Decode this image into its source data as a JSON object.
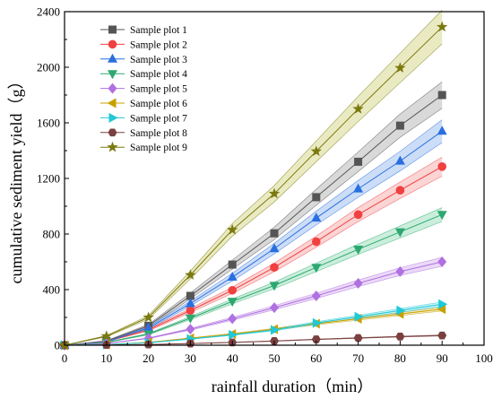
{
  "chart_data": {
    "type": "line",
    "xlabel": "rainfall duration（min）",
    "ylabel": "cumulative sediment yield（g）",
    "xlim": [
      0,
      100
    ],
    "ylim": [
      0,
      2400
    ],
    "xticks": [
      0,
      10,
      20,
      30,
      40,
      50,
      60,
      70,
      80,
      90,
      100
    ],
    "yticks": [
      0,
      400,
      800,
      1200,
      1600,
      2000,
      2400
    ],
    "grid": false,
    "legend_position": "top-left",
    "x": [
      0,
      10,
      20,
      30,
      40,
      50,
      60,
      70,
      80,
      90
    ],
    "series": [
      {
        "name": "Sample plot 1",
        "marker": "square",
        "color": "#555555",
        "band": "#bfbfbf",
        "values": [
          0,
          30,
          140,
          355,
          580,
          805,
          1065,
          1320,
          1580,
          1800
        ]
      },
      {
        "name": "Sample plot 2",
        "marker": "circle",
        "color": "#f04040",
        "band": "#f8b8b8",
        "values": [
          0,
          28,
          110,
          250,
          395,
          560,
          745,
          940,
          1115,
          1285
        ]
      },
      {
        "name": "Sample plot 3",
        "marker": "triangle-up",
        "color": "#2a6fe0",
        "band": "#aac6f2",
        "values": [
          0,
          25,
          125,
          300,
          490,
          695,
          915,
          1125,
          1325,
          1540
        ]
      },
      {
        "name": "Sample plot 4",
        "marker": "triangle-down",
        "color": "#2ea870",
        "band": "#a8e2c4",
        "values": [
          0,
          20,
          80,
          195,
          315,
          430,
          560,
          690,
          815,
          940
        ]
      },
      {
        "name": "Sample plot 5",
        "marker": "diamond",
        "color": "#b070e0",
        "band": "#dcc0f2",
        "values": [
          0,
          12,
          50,
          115,
          190,
          270,
          355,
          445,
          530,
          600
        ]
      },
      {
        "name": "Sample plot 6",
        "marker": "triangle-left",
        "color": "#c8a000",
        "band": "#ece0a0",
        "values": [
          0,
          5,
          20,
          50,
          80,
          115,
          155,
          190,
          225,
          260
        ]
      },
      {
        "name": "Sample plot 7",
        "marker": "triangle-right",
        "color": "#20c8d8",
        "band": "#a8ecf2",
        "values": [
          0,
          5,
          18,
          45,
          75,
          110,
          160,
          205,
          250,
          295
        ]
      },
      {
        "name": "Sample plot 8",
        "marker": "hexagon",
        "color": "#7a4040",
        "band": "#d8c0c0",
        "values": [
          0,
          2,
          5,
          12,
          20,
          30,
          42,
          52,
          62,
          70
        ]
      },
      {
        "name": "Sample plot 9",
        "marker": "star",
        "color": "#7a7a10",
        "band": "#dcdc9a",
        "values": [
          0,
          65,
          200,
          505,
          830,
          1090,
          1395,
          1700,
          1995,
          2290
        ]
      }
    ]
  }
}
